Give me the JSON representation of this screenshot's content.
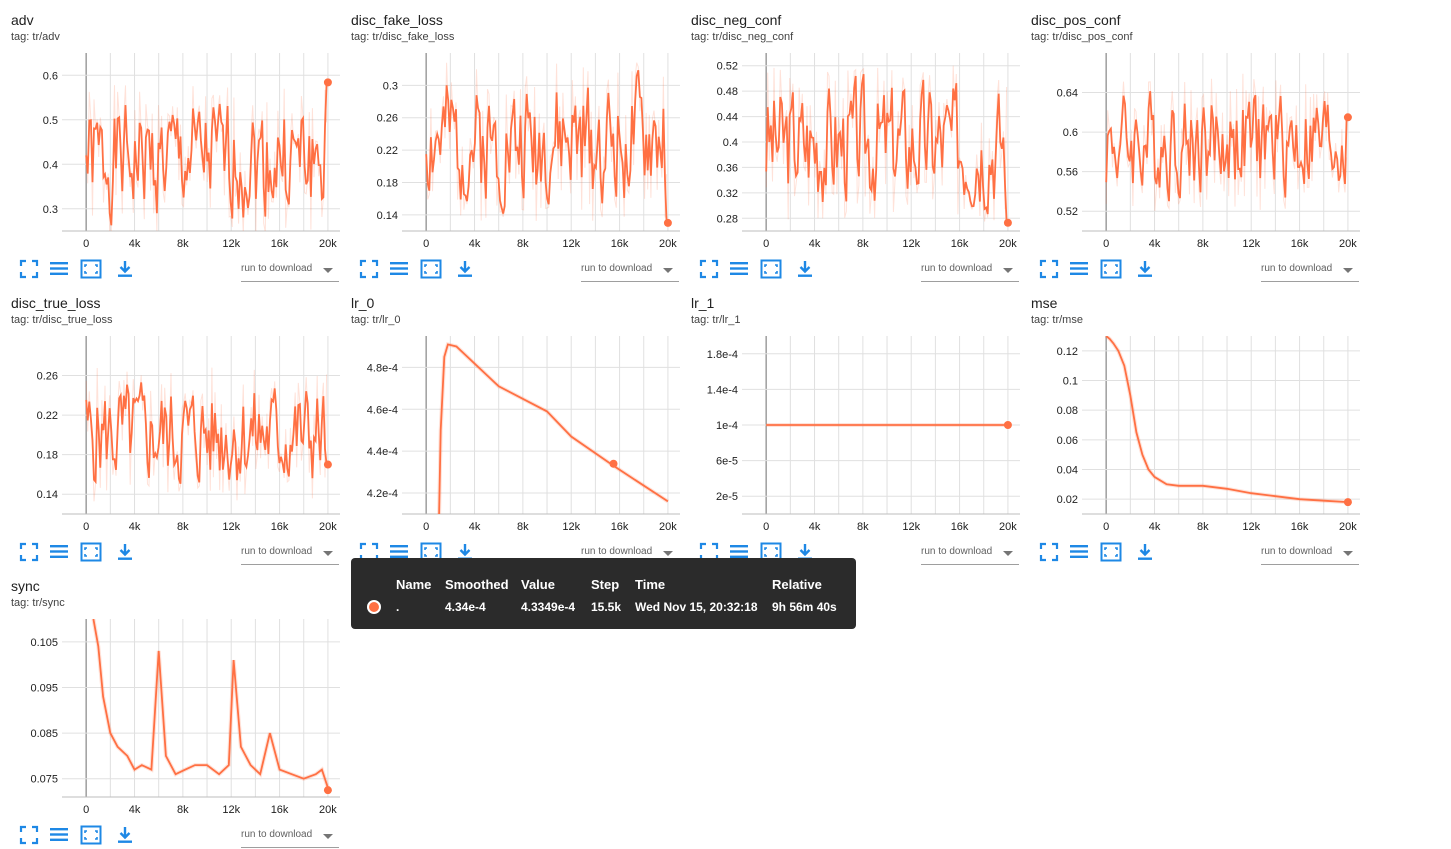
{
  "download_label": "run to download",
  "accent": "#ff7043",
  "icons": [
    "fullscreen-icon",
    "list-icon",
    "fit-domain-icon",
    "download-icon"
  ],
  "cards": [
    {
      "title": "adv",
      "tag": "tag: tr/adv",
      "xticks": [
        "0",
        "4k",
        "8k",
        "12k",
        "16k",
        "20k"
      ],
      "yticks": [
        "0.3",
        "0.4",
        "0.5",
        "0.6"
      ]
    },
    {
      "title": "disc_fake_loss",
      "tag": "tag: tr/disc_fake_loss",
      "xticks": [
        "0",
        "4k",
        "8k",
        "12k",
        "16k",
        "20k"
      ],
      "yticks": [
        "0.14",
        "0.18",
        "0.22",
        "0.26",
        "0.3"
      ]
    },
    {
      "title": "disc_neg_conf",
      "tag": "tag: tr/disc_neg_conf",
      "xticks": [
        "0",
        "4k",
        "8k",
        "12k",
        "16k",
        "20k"
      ],
      "yticks": [
        "0.28",
        "0.32",
        "0.36",
        "0.4",
        "0.44",
        "0.48",
        "0.52"
      ]
    },
    {
      "title": "disc_pos_conf",
      "tag": "tag: tr/disc_pos_conf",
      "xticks": [
        "0",
        "4k",
        "8k",
        "12k",
        "16k",
        "20k"
      ],
      "yticks": [
        "0.52",
        "0.56",
        "0.6",
        "0.64"
      ]
    },
    {
      "title": "disc_true_loss",
      "tag": "tag: tr/disc_true_loss",
      "xticks": [
        "0",
        "4k",
        "8k",
        "12k",
        "16k",
        "20k"
      ],
      "yticks": [
        "0.14",
        "0.18",
        "0.22",
        "0.26"
      ]
    },
    {
      "title": "lr_0",
      "tag": "tag: tr/lr_0",
      "xticks": [
        "0",
        "4k",
        "8k",
        "12k",
        "16k",
        "20k"
      ],
      "yticks": [
        "4.2e-4",
        "4.4e-4",
        "4.6e-4",
        "4.8e-4"
      ]
    },
    {
      "title": "lr_1",
      "tag": "tag: tr/lr_1",
      "xticks": [
        "0",
        "4k",
        "8k",
        "12k",
        "16k",
        "20k"
      ],
      "yticks": [
        "2e-5",
        "6e-5",
        "1e-4",
        "1.4e-4",
        "1.8e-4"
      ]
    },
    {
      "title": "mse",
      "tag": "tag: tr/mse",
      "xticks": [
        "0",
        "4k",
        "8k",
        "12k",
        "16k",
        "20k"
      ],
      "yticks": [
        "0.02",
        "0.04",
        "0.06",
        "0.08",
        "0.1",
        "0.12"
      ]
    },
    {
      "title": "sync",
      "tag": "tag: tr/sync",
      "xticks": [
        "0",
        "4k",
        "8k",
        "12k",
        "16k",
        "20k"
      ],
      "yticks": [
        "0.075",
        "0.085",
        "0.095",
        "0.105"
      ]
    }
  ],
  "chart_data": [
    {
      "type": "line",
      "title": "adv",
      "xlim": [
        -2000,
        21000
      ],
      "ylim": [
        0.25,
        0.65
      ],
      "series": [
        {
          "smoothing": "noisy",
          "start_x": 0,
          "end_x": 20000,
          "base": 0.41,
          "amp": 0.12,
          "seed": 1,
          "last": {
            "x": 20000,
            "y": 0.584
          }
        }
      ]
    },
    {
      "type": "line",
      "title": "disc_fake_loss",
      "xlim": [
        -2000,
        21000
      ],
      "ylim": [
        0.12,
        0.34
      ],
      "series": [
        {
          "smoothing": "noisy",
          "start_x": 0,
          "end_x": 20000,
          "base": 0.23,
          "amp": 0.07,
          "seed": 2,
          "last": {
            "x": 20000,
            "y": 0.13
          }
        }
      ]
    },
    {
      "type": "line",
      "title": "disc_neg_conf",
      "xlim": [
        -2000,
        21000
      ],
      "ylim": [
        0.26,
        0.54
      ],
      "series": [
        {
          "smoothing": "noisy",
          "start_x": 0,
          "end_x": 20000,
          "base": 0.4,
          "amp": 0.09,
          "seed": 3,
          "last": {
            "x": 20000,
            "y": 0.273
          }
        }
      ]
    },
    {
      "type": "line",
      "title": "disc_pos_conf",
      "xlim": [
        -2000,
        21000
      ],
      "ylim": [
        0.5,
        0.68
      ],
      "series": [
        {
          "smoothing": "noisy",
          "start_x": 0,
          "end_x": 20000,
          "base": 0.59,
          "amp": 0.05,
          "seed": 4,
          "last": {
            "x": 20000,
            "y": 0.615
          }
        }
      ]
    },
    {
      "type": "line",
      "title": "disc_true_loss",
      "xlim": [
        -2000,
        21000
      ],
      "ylim": [
        0.12,
        0.3
      ],
      "series": [
        {
          "smoothing": "noisy",
          "start_x": 0,
          "end_x": 20000,
          "base": 0.2,
          "amp": 0.05,
          "seed": 5,
          "last": {
            "x": 20000,
            "y": 0.17
          }
        }
      ]
    },
    {
      "type": "line",
      "title": "lr_0",
      "xlim": [
        -2000,
        21000
      ],
      "ylim": [
        0.00041,
        0.000495
      ],
      "series": [
        {
          "smoothing": "clean",
          "points": [
            [
              1000,
              0.00039
            ],
            [
              1200,
              0.00045
            ],
            [
              1500,
              0.000485
            ],
            [
              1800,
              0.000491
            ],
            [
              2500,
              0.00049
            ],
            [
              6000,
              0.000471
            ],
            [
              10000,
              0.000459
            ],
            [
              12000,
              0.000447
            ],
            [
              15500,
              0.000433
            ],
            [
              20000,
              0.000416
            ]
          ],
          "last": {
            "x": 15500,
            "y": 0.000434
          }
        }
      ]
    },
    {
      "type": "line",
      "title": "lr_1",
      "xlim": [
        -2000,
        21000
      ],
      "ylim": [
        0,
        0.0002
      ],
      "series": [
        {
          "smoothing": "clean",
          "points": [
            [
              0,
              0.0001
            ],
            [
              20000,
              0.0001
            ]
          ],
          "last": {
            "x": 20000,
            "y": 0.0001
          }
        }
      ]
    },
    {
      "type": "line",
      "title": "mse",
      "xlim": [
        -2000,
        21000
      ],
      "ylim": [
        0.01,
        0.13
      ],
      "series": [
        {
          "smoothing": "clean",
          "points": [
            [
              0,
              0.13
            ],
            [
              300,
              0.128
            ],
            [
              600,
              0.125
            ],
            [
              1000,
              0.12
            ],
            [
              1500,
              0.11
            ],
            [
              2000,
              0.09
            ],
            [
              2500,
              0.065
            ],
            [
              3000,
              0.05
            ],
            [
              3500,
              0.04
            ],
            [
              4000,
              0.035
            ],
            [
              5000,
              0.03
            ],
            [
              6000,
              0.029
            ],
            [
              8000,
              0.029
            ],
            [
              10000,
              0.027
            ],
            [
              12000,
              0.024
            ],
            [
              14000,
              0.022
            ],
            [
              16000,
              0.02
            ],
            [
              18000,
              0.019
            ],
            [
              20000,
              0.018
            ]
          ],
          "last": {
            "x": 20000,
            "y": 0.018
          }
        }
      ]
    },
    {
      "type": "line",
      "title": "sync",
      "xlim": [
        -2000,
        21000
      ],
      "ylim": [
        0.071,
        0.11
      ],
      "series": [
        {
          "smoothing": "clean",
          "points": [
            [
              600,
              0.11
            ],
            [
              1000,
              0.104
            ],
            [
              1400,
              0.093
            ],
            [
              2000,
              0.085
            ],
            [
              2600,
              0.082
            ],
            [
              3400,
              0.08
            ],
            [
              4000,
              0.077
            ],
            [
              4600,
              0.078
            ],
            [
              5400,
              0.077
            ],
            [
              6000,
              0.103
            ],
            [
              6600,
              0.08
            ],
            [
              7400,
              0.076
            ],
            [
              8200,
              0.077
            ],
            [
              9000,
              0.078
            ],
            [
              10000,
              0.078
            ],
            [
              11000,
              0.076
            ],
            [
              11800,
              0.078
            ],
            [
              12200,
              0.101
            ],
            [
              12800,
              0.082
            ],
            [
              13600,
              0.078
            ],
            [
              14400,
              0.076
            ],
            [
              15200,
              0.085
            ],
            [
              16000,
              0.077
            ],
            [
              17000,
              0.076
            ],
            [
              18000,
              0.075
            ],
            [
              19000,
              0.076
            ],
            [
              19500,
              0.077
            ],
            [
              20000,
              0.073
            ]
          ],
          "last": {
            "x": 20000,
            "y": 0.0725
          }
        }
      ]
    }
  ],
  "tooltip": {
    "headers": [
      "Name",
      "Smoothed",
      "Value",
      "Step",
      "Time",
      "Relative"
    ],
    "row": [
      ".",
      "4.34e-4",
      "4.3349e-4",
      "15.5k",
      "Wed Nov 15, 20:32:18",
      "9h 56m 40s"
    ]
  }
}
